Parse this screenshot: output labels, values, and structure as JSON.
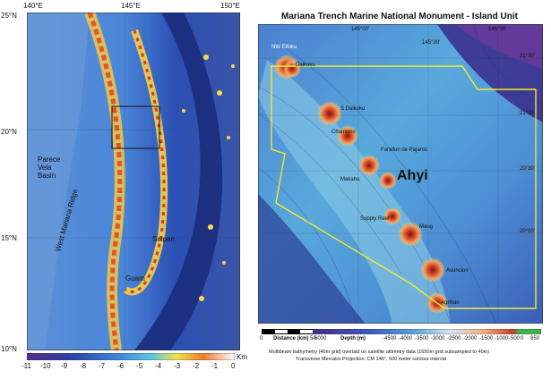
{
  "left_map": {
    "lon_ticks": [
      "140°E",
      "145°E",
      "150°E"
    ],
    "lat_ticks": [
      "25°N",
      "20°N",
      "15°N",
      "10°N"
    ],
    "labels": {
      "basin_line1": "Parece",
      "basin_line2": "Vela",
      "basin_line3": "Basin",
      "ridge": "West Mariana Ridge",
      "saipan": "Saipan",
      "guam": "Guam"
    },
    "colorbar": {
      "ticks": [
        "-11",
        "-10",
        "-9",
        "-8",
        "-7",
        "-6",
        "-5",
        "-4",
        "-3",
        "-2",
        "-1",
        "0"
      ],
      "unit": "Km"
    }
  },
  "right_map": {
    "title": "Mariana Trench Marine National Monument - Island Unit",
    "lon_ticks": [
      "145°00'",
      "145°30'",
      "146°00'"
    ],
    "lat_ticks": [
      "21°30'",
      "21°00'",
      "20°30'",
      "20°00'"
    ],
    "labels": {
      "nw_eifuku": "NW Eifuku",
      "daikoku": "Daikoku",
      "s_daikoku": "S Daikoku",
      "chamorro": "Chamorro",
      "farallon": "Farallon de Pajaros",
      "maug": "Maug",
      "ahyi": "Ahyi",
      "supply_reef": "Supply Reef",
      "asuncion": "Asuncion",
      "agrihan": "Agrihan",
      "makahu": "Makahu"
    },
    "scalebar": {
      "label": "Distance (km)",
      "ticks": [
        "0",
        "50"
      ]
    },
    "depth_bar": {
      "label": "Depth (m)",
      "ticks": [
        "-6000",
        "-4500",
        "-4000",
        "-3500",
        "-3000",
        "-2500",
        "-2000",
        "-1500",
        "-1000",
        "-500",
        "0",
        "850"
      ]
    },
    "caption_line1": "Multibeam bathymetry (40m grid) overlaid on satellite altimetry data (1650m grid subsampled to 40m)",
    "caption_line2": "Transverse Mercator Projection: CM 145°, 500 meter contour interval"
  }
}
